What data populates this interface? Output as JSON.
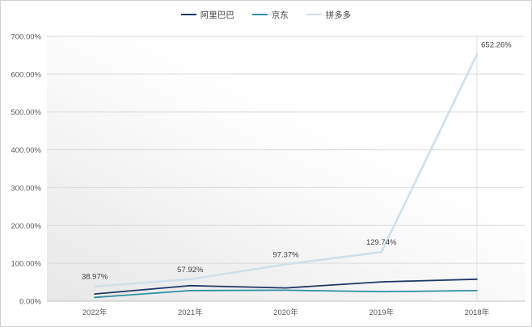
{
  "chart_data": {
    "type": "line",
    "title": "",
    "categories": [
      "2022年",
      "2021年",
      "2020年",
      "2019年",
      "2018年"
    ],
    "series": [
      {
        "name": "阿里巴巴",
        "color": "#1f3864",
        "stroke_width": 1.8,
        "values": [
          19,
          41,
          35,
          51,
          58
        ]
      },
      {
        "name": "京东",
        "color": "#2e8fa0",
        "stroke_width": 1.8,
        "values": [
          10,
          28,
          29,
          25,
          28
        ]
      },
      {
        "name": "拼多多",
        "color": "#cfe0ea",
        "stroke_width": 2.6,
        "values": [
          38.97,
          57.92,
          97.37,
          129.74,
          652.26
        ],
        "data_labels": [
          "38.97%",
          "57.92%",
          "97.37%",
          "129.74%",
          "652.26%"
        ]
      }
    ],
    "ylim": [
      0,
      700
    ],
    "yticks": [
      0,
      100,
      200,
      300,
      400,
      500,
      600,
      700
    ],
    "ytick_labels": [
      "0.00%",
      "100.00%",
      "200.00%",
      "300.00%",
      "400.00%",
      "500.00%",
      "600.00%",
      "700.00%"
    ],
    "legend_position": "top",
    "grid": "horizontal"
  },
  "colors": {
    "grid": "#d9d9d9",
    "vertical_grid": "#e0e0e0",
    "axis_text": "#595959",
    "label_text": "#404040",
    "border": "#cfcfcf",
    "plot_bg_from": "#e7e7e7",
    "plot_bg_to": "#ffffff"
  }
}
